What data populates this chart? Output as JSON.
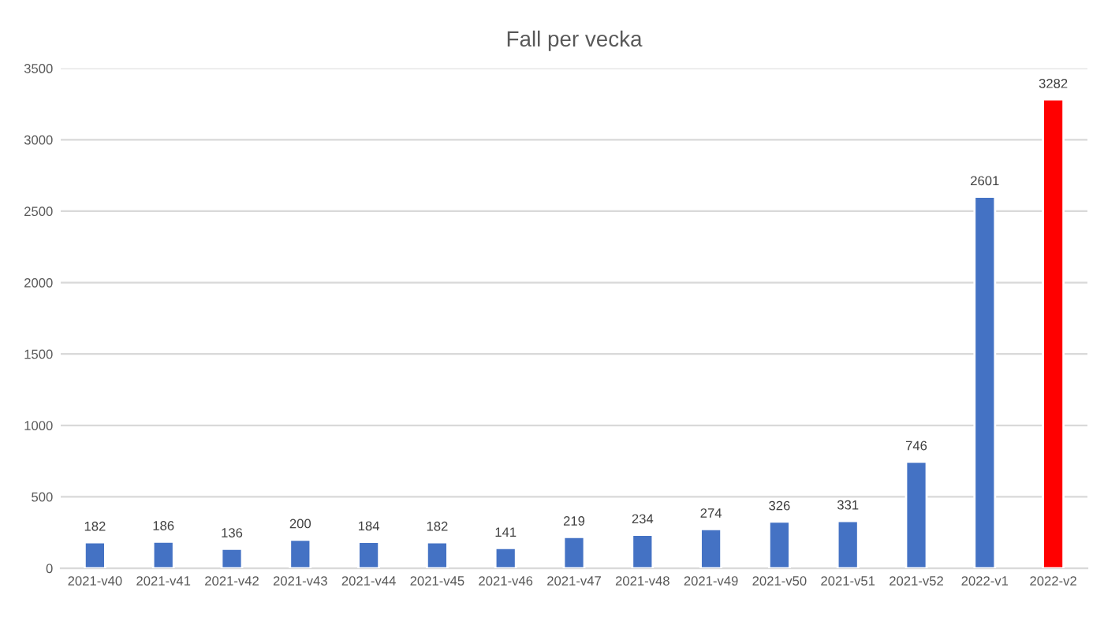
{
  "chart_data": {
    "type": "bar",
    "title": "Fall per vecka",
    "categories": [
      "2021-v40",
      "2021-v41",
      "2021-v42",
      "2021-v43",
      "2021-v44",
      "2021-v45",
      "2021-v46",
      "2021-v47",
      "2021-v48",
      "2021-v49",
      "2021-v50",
      "2021-v51",
      "2021-v52",
      "2022-v1",
      "2022-v2"
    ],
    "values": [
      182,
      186,
      136,
      200,
      184,
      182,
      141,
      219,
      234,
      274,
      326,
      331,
      746,
      2601,
      3282
    ],
    "colors": [
      "#4472c4",
      "#4472c4",
      "#4472c4",
      "#4472c4",
      "#4472c4",
      "#4472c4",
      "#4472c4",
      "#4472c4",
      "#4472c4",
      "#4472c4",
      "#4472c4",
      "#4472c4",
      "#4472c4",
      "#4472c4",
      "#ff0000"
    ],
    "ylim": [
      0,
      3500
    ],
    "yticks": [
      0,
      500,
      1000,
      1500,
      2000,
      2500,
      3000,
      3500
    ],
    "grid": "y",
    "data_labels": true
  }
}
